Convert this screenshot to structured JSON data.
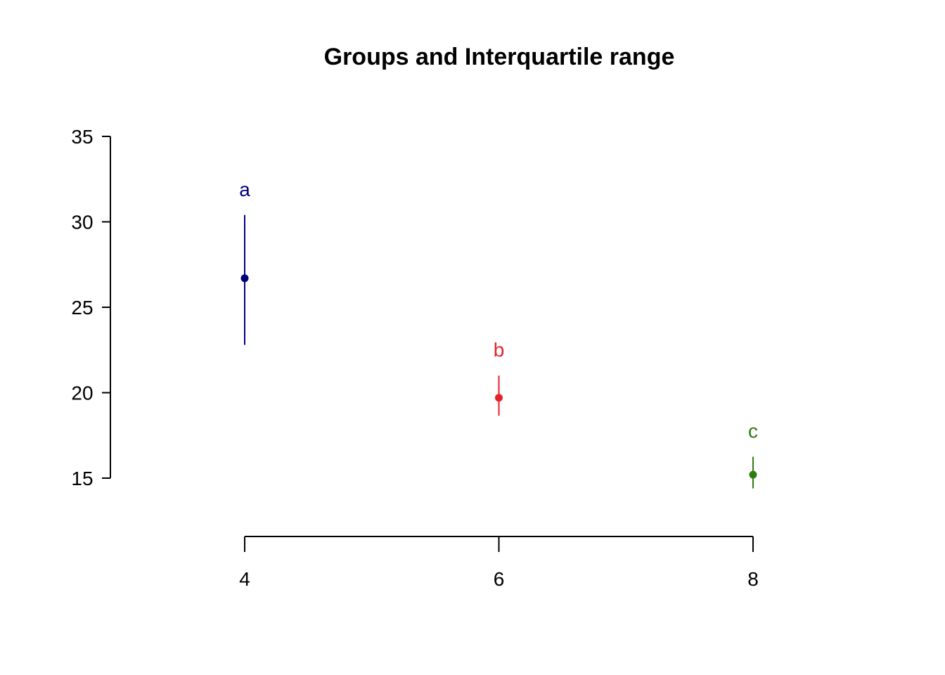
{
  "chart_data": {
    "type": "scatter",
    "title": "Groups and Interquartile range",
    "xlabel": "",
    "ylabel": "",
    "xlim": [
      4,
      8
    ],
    "ylim": [
      15,
      35
    ],
    "x_ticks": [
      4,
      6,
      8
    ],
    "y_ticks": [
      15,
      20,
      25,
      30,
      35
    ],
    "grid": false,
    "groups": [
      {
        "x": 4,
        "median": 26.7,
        "q1": 22.8,
        "q3": 30.4,
        "letter": "a",
        "color": "#00007F"
      },
      {
        "x": 6,
        "median": 19.7,
        "q1": 18.65,
        "q3": 21.0,
        "letter": "b",
        "color": "#E3242B"
      },
      {
        "x": 8,
        "median": 15.2,
        "q1": 14.4,
        "q3": 16.25,
        "letter": "c",
        "color": "#2E7D0E"
      }
    ]
  }
}
